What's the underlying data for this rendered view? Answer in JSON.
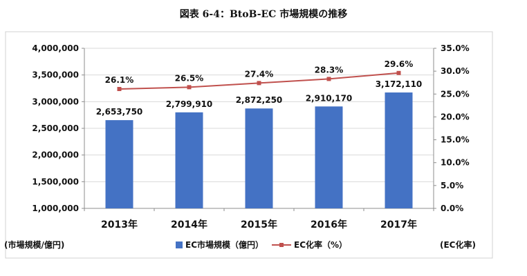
{
  "colors": {
    "bar": "#4472C4",
    "line": "#C0504D",
    "grid": "#D9D9D9",
    "axis": "#8C8C8C"
  },
  "axes": {
    "left_label": "(市場規模/億円)",
    "right_label": "(EC化率)"
  },
  "legend": {
    "bar_label": "EC市場規模（億円）",
    "line_label": "EC化率（%）"
  },
  "chart_data": {
    "type": "bar",
    "title": "図表 6-4：BtoB-EC 市場規模の推移",
    "categories": [
      "2013年",
      "2014年",
      "2015年",
      "2016年",
      "2017年"
    ],
    "series": [
      {
        "name": "EC市場規模（億円）",
        "type": "bar",
        "axis": "left",
        "values": [
          2653750,
          2799910,
          2872250,
          2910170,
          3172110
        ],
        "labels": [
          "2,653,750",
          "2,799,910",
          "2,872,250",
          "2,910,170",
          "3,172,110"
        ]
      },
      {
        "name": "EC化率（%）",
        "type": "line",
        "axis": "right",
        "values": [
          26.1,
          26.5,
          27.4,
          28.3,
          29.6
        ],
        "labels": [
          "26.1%",
          "26.5%",
          "27.4%",
          "28.3%",
          "29.6%"
        ]
      }
    ],
    "ylim": [
      1000000,
      4000000
    ],
    "y_ticks": [
      "1,000,000",
      "1,500,000",
      "2,000,000",
      "2,500,000",
      "3,000,000",
      "3,500,000",
      "4,000,000"
    ],
    "y2lim": [
      0,
      35
    ],
    "y2_ticks": [
      "0.0%",
      "5.0%",
      "10.0%",
      "15.0%",
      "20.0%",
      "25.0%",
      "30.0%",
      "35.0%"
    ],
    "ylabel": "(市場規模/億円)",
    "y2label": "(EC化率)",
    "grid": true,
    "legend_position": "bottom"
  }
}
